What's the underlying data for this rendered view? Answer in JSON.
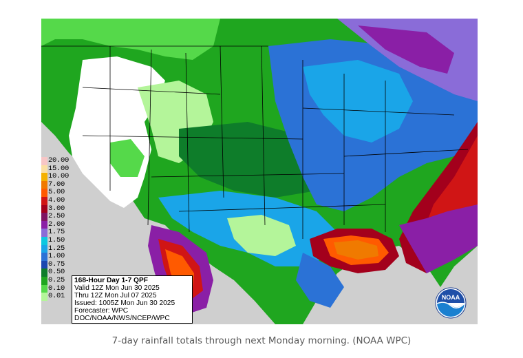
{
  "map": {
    "title": "168-Hour Day 1-7 QPF",
    "valid": "Valid 12Z Mon Jun 30 2025",
    "thru": "Thru 12Z Mon Jul 07 2025",
    "issued": "Issued: 1005Z Mon Jun 30 2025",
    "forecaster": "Forecaster: WPC",
    "agency": "DOC/NOAA/NWS/NCEP/WPC",
    "logo_text": "NOAA",
    "legend": [
      {
        "label": "20.00",
        "color": "#f7c6c6"
      },
      {
        "label": "15.00",
        "color": "#fbdfa3"
      },
      {
        "label": "10.00",
        "color": "#f4b100"
      },
      {
        "label": "7.00",
        "color": "#f07a00"
      },
      {
        "label": "5.00",
        "color": "#ff5a00"
      },
      {
        "label": "4.00",
        "color": "#d01515"
      },
      {
        "label": "3.00",
        "color": "#a3001c"
      },
      {
        "label": "2.50",
        "color": "#7f1462"
      },
      {
        "label": "2.00",
        "color": "#8a1fa6"
      },
      {
        "label": "1.75",
        "color": "#8a6cd8"
      },
      {
        "label": "1.50",
        "color": "#0cc8e0"
      },
      {
        "label": "1.25",
        "color": "#1aa5e8"
      },
      {
        "label": "1.00",
        "color": "#2b72d6"
      },
      {
        "label": "0.75",
        "color": "#1a47b0"
      },
      {
        "label": "0.50",
        "color": "#0e7d2a"
      },
      {
        "label": "0.25",
        "color": "#1fa61f"
      },
      {
        "label": "0.10",
        "color": "#55d94a"
      },
      {
        "label": "0.01",
        "color": "#b4f59a"
      }
    ]
  },
  "caption": "7-day rainfall totals through next Monday morning. (NOAA WPC)"
}
